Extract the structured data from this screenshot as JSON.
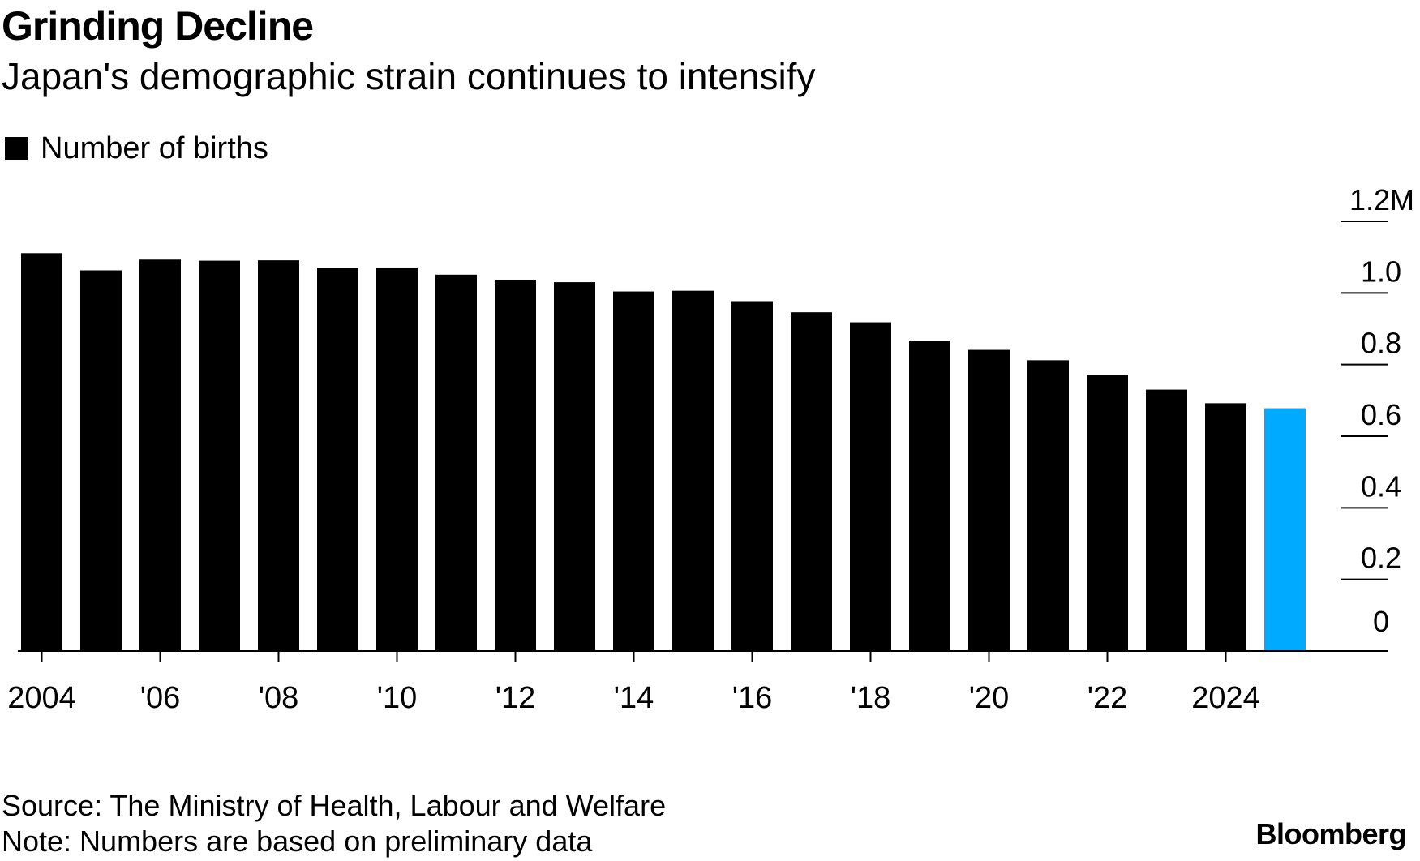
{
  "chart_data": {
    "type": "bar",
    "title": "Grinding Decline",
    "subtitle": "Japan's demographic strain continues to intensify",
    "legend": [
      {
        "label": "Number of births",
        "color": "#000000"
      }
    ],
    "series": [
      {
        "name": "Number of births",
        "values": [
          1.111,
          1.063,
          1.093,
          1.09,
          1.091,
          1.07,
          1.071,
          1.051,
          1.037,
          1.03,
          1.004,
          1.006,
          0.977,
          0.946,
          0.918,
          0.865,
          0.841,
          0.812,
          0.771,
          0.73,
          0.692,
          0.678
        ]
      }
    ],
    "categories": [
      "2004",
      "2005",
      "2006",
      "2007",
      "2008",
      "2009",
      "2010",
      "2011",
      "2012",
      "2013",
      "2014",
      "2015",
      "2016",
      "2017",
      "2018",
      "2019",
      "2020",
      "2021",
      "2022",
      "2023",
      "2024",
      "2025"
    ],
    "x_tick_labels": [
      "2004",
      "'06",
      "'08",
      "'10",
      "'12",
      "'14",
      "'16",
      "'18",
      "'20",
      "'22",
      "2024"
    ],
    "y_tick_labels": [
      "0",
      "0.2",
      "0.4",
      "0.6",
      "0.8",
      "1.0",
      "1.2M"
    ],
    "y_ticks": [
      0,
      0.2,
      0.4,
      0.6,
      0.8,
      1.0,
      1.2
    ],
    "ylim": [
      0,
      1.2
    ],
    "ylabel": "",
    "xlabel": "",
    "y_axis_side": "right",
    "grid": false,
    "bar_color": "#000000",
    "highlight_index": 21,
    "highlight_color": "#00AAFF"
  },
  "footer": {
    "source": "Source: The Ministry of Health, Labour and Welfare",
    "note": "Note: Numbers are based on preliminary data",
    "brand": "Bloomberg"
  }
}
